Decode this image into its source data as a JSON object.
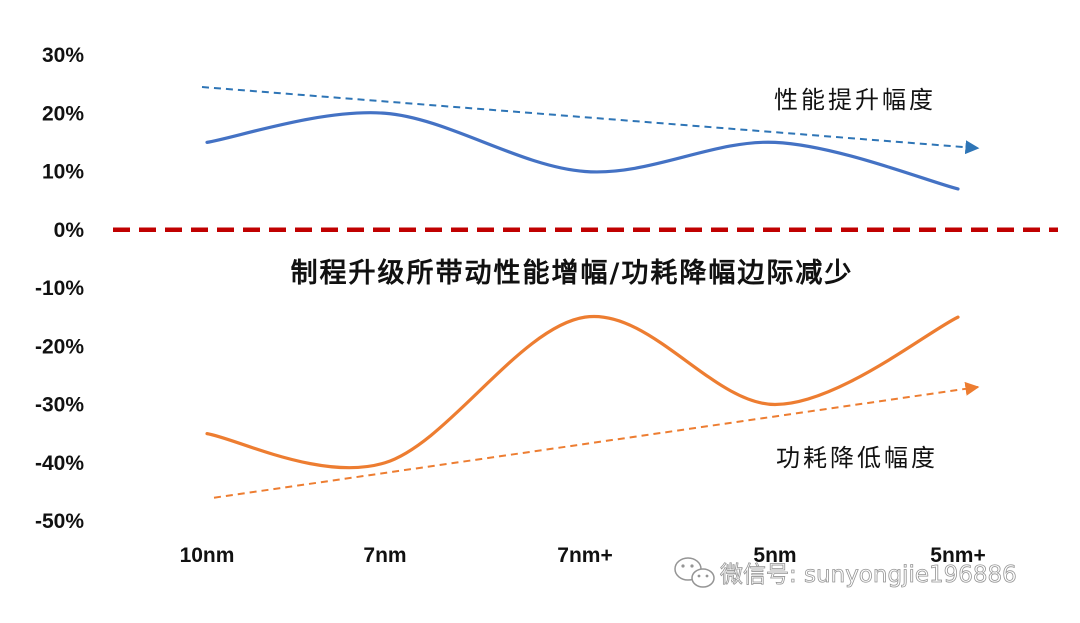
{
  "chart_data": {
    "type": "line",
    "title": "制程升级所带动性能增幅/功耗降幅边际减少",
    "categories": [
      "10nm",
      "7nm",
      "7nm+",
      "5nm",
      "5nm+"
    ],
    "y_tick_labels": [
      "30%",
      "20%",
      "10%",
      "0%",
      "-10%",
      "-20%",
      "-30%",
      "-40%",
      "-50%"
    ],
    "ylim": [
      -50,
      30
    ],
    "grid": false,
    "series": [
      {
        "name": "性能提升幅度",
        "values": [
          15,
          20,
          10,
          15,
          7
        ],
        "color": "#4472c4",
        "smooth": true
      },
      {
        "name": "功耗降低幅度",
        "values": [
          -35,
          -40,
          -15,
          -30,
          -15
        ],
        "color": "#ed7d31",
        "smooth": true
      }
    ],
    "trend_arrows": [
      {
        "series": "性能提升幅度",
        "from": 24.5,
        "to": 14,
        "color": "#2e75b6"
      },
      {
        "series": "功耗降低幅度",
        "from": -46,
        "to": -27,
        "color": "#ed7d31"
      }
    ],
    "zero_line": {
      "value": 0,
      "color": "#c00000",
      "style": "dashed"
    }
  },
  "watermark": {
    "text": "微信号: sunyongjie196886"
  }
}
